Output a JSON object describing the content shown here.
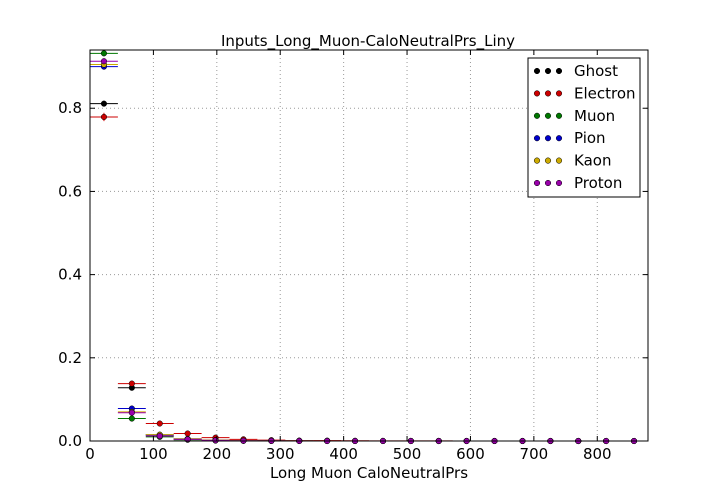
{
  "chart_data": {
    "type": "scatter",
    "title": "Inputs_Long_Muon-CaloNeutralPrs_Liny",
    "xlabel": "Long Muon CaloNeutralPrs",
    "ylabel": "",
    "xlim": [
      0,
      880
    ],
    "ylim": [
      0,
      0.94
    ],
    "xticks": [
      0,
      100,
      200,
      300,
      400,
      500,
      600,
      700,
      800
    ],
    "yticks": [
      0.0,
      0.2,
      0.4,
      0.6,
      0.8
    ],
    "xtick_labels": [
      "0",
      "100",
      "200",
      "300",
      "400",
      "500",
      "600",
      "700",
      "800"
    ],
    "ytick_labels": [
      "0.0",
      "0.2",
      "0.4",
      "0.6",
      "0.8"
    ],
    "grid": true,
    "legend_position": "top-right",
    "x": [
      22,
      66,
      110,
      154,
      198,
      242,
      286,
      330,
      374,
      418,
      462,
      506,
      550,
      594,
      638,
      682,
      726,
      770,
      814,
      858
    ],
    "bin_half_width": 22,
    "series": [
      {
        "name": "Ghost",
        "color": "#000000",
        "values": [
          0.811,
          0.128,
          0.015,
          0.005,
          0.002,
          0.001,
          0.0005,
          0.0003,
          0.0002,
          0.0001,
          0.0001,
          0.0001,
          0,
          0,
          0,
          0,
          0,
          0,
          0,
          0
        ],
        "errors": [
          0.006,
          0.004,
          0.002,
          0.001,
          0.001,
          0.0005,
          0,
          0,
          0,
          0,
          0,
          0,
          0,
          0,
          0,
          0,
          0,
          0,
          0,
          0
        ]
      },
      {
        "name": "Electron",
        "color": "#cc0000",
        "values": [
          0.779,
          0.138,
          0.042,
          0.018,
          0.008,
          0.004,
          0.002,
          0.001,
          0.0008,
          0.0005,
          0.0003,
          0.0002,
          0.0002,
          0.0001,
          0.0001,
          0.0001,
          0,
          0,
          0,
          0
        ],
        "errors": [
          0.01,
          0.005,
          0.003,
          0.002,
          0.001,
          0.001,
          0.0005,
          0,
          0,
          0,
          0,
          0,
          0,
          0,
          0,
          0,
          0,
          0,
          0,
          0
        ]
      },
      {
        "name": "Muon",
        "color": "#007700",
        "values": [
          0.932,
          0.054,
          0.01,
          0.003,
          0.001,
          0.0005,
          0.0002,
          0.0001,
          0,
          0,
          0,
          0,
          0,
          0,
          0,
          0,
          0,
          0,
          0,
          0
        ],
        "errors": [
          0.004,
          0.003,
          0.001,
          0.001,
          0,
          0,
          0,
          0,
          0,
          0,
          0,
          0,
          0,
          0,
          0,
          0,
          0,
          0,
          0,
          0
        ]
      },
      {
        "name": "Pion",
        "color": "#0000cc",
        "values": [
          0.9,
          0.078,
          0.014,
          0.005,
          0.002,
          0.0008,
          0.0004,
          0.0002,
          0.0001,
          0,
          0,
          0,
          0,
          0,
          0,
          0,
          0,
          0,
          0,
          0
        ],
        "errors": [
          0.004,
          0.003,
          0.001,
          0.001,
          0,
          0,
          0,
          0,
          0,
          0,
          0,
          0,
          0,
          0,
          0,
          0,
          0,
          0,
          0,
          0
        ]
      },
      {
        "name": "Kaon",
        "color": "#ccaa00",
        "values": [
          0.905,
          0.07,
          0.015,
          0.005,
          0.002,
          0.0008,
          0.0004,
          0.0002,
          0.0001,
          0,
          0,
          0,
          0,
          0,
          0,
          0,
          0,
          0,
          0,
          0
        ],
        "errors": [
          0.004,
          0.003,
          0.001,
          0.001,
          0,
          0,
          0,
          0,
          0,
          0,
          0,
          0,
          0,
          0,
          0,
          0,
          0,
          0,
          0,
          0
        ]
      },
      {
        "name": "Proton",
        "color": "#9900aa",
        "values": [
          0.913,
          0.068,
          0.012,
          0.004,
          0.0015,
          0.0006,
          0.0003,
          0.0001,
          0,
          0,
          0,
          0,
          0,
          0,
          0,
          0,
          0,
          0,
          0,
          0
        ],
        "errors": [
          0.004,
          0.003,
          0.001,
          0.001,
          0,
          0,
          0,
          0,
          0,
          0,
          0,
          0,
          0,
          0,
          0,
          0,
          0,
          0,
          0,
          0
        ]
      }
    ]
  }
}
